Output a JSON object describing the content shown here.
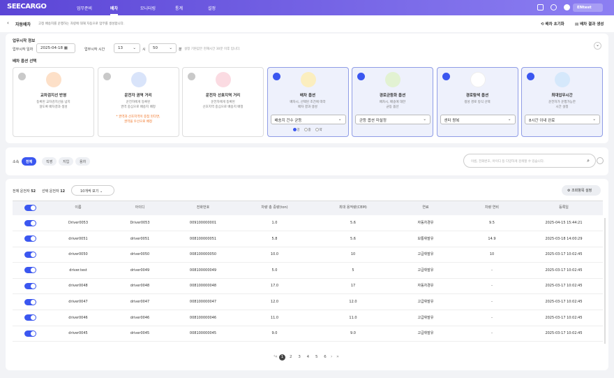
{
  "nav": {
    "logo": "SEECARGO",
    "menu": [
      "업무준비",
      "배차",
      "모니터링",
      "통계",
      "설정"
    ],
    "active": 1,
    "user": "ENtest"
  },
  "header": {
    "title": "자동배차",
    "desc": "고정 배송지를 운행하는 차량에 대해 자동으로 업무를 생성합니다.",
    "actions": [
      "배차 초기화",
      "배차 결과 생성"
    ]
  },
  "start_info": {
    "title": "업무시작 정보",
    "date_label": "업무시작 일자",
    "date": "2025-04-18",
    "time_label": "업무시작 시간",
    "hour": "13",
    "hour_unit": "시",
    "minute": "50",
    "minute_unit": "분",
    "note": "설정 기본값은 현재시간 30분 이후 입니다."
  },
  "options": {
    "title": "배차 옵션 선택",
    "cards": [
      {
        "title": "교차검지선 반영",
        "desc": [
          "등록된 교차검지선을 넘지",
          "않도록 배차결과 생성"
        ],
        "checked": false,
        "color": "#fde0c8"
      },
      {
        "title": "운전자 권역 거리",
        "desc": [
          "운전자에게 등록된",
          "권역 중심으로 배송지 배정"
        ],
        "note": [
          "* 권역과 선호지역이 중첩 된다면,",
          "권역을 우선으로 배정"
        ],
        "checked": false,
        "color": "#d9e4fa"
      },
      {
        "title": "운전자 선호지역 거리",
        "desc": [
          "운전자에게 등록된",
          "선호지역 중심으로 배송지 배정"
        ],
        "checked": false,
        "color": "#fbdbe2"
      },
      {
        "title": "배차 옵션",
        "desc": [
          "배차시, 선택된 조건에 따라",
          "배차 결과 생성"
        ],
        "checked": true,
        "color": "#fbeebf",
        "select": "배송지 건수 균등",
        "radios": [
          "강",
          "중",
          "약"
        ],
        "radio_selected": 0
      },
      {
        "title": "경로균등화 옵션",
        "desc": [
          "배차시, 배송에 대한",
          "균등 옵션"
        ],
        "checked": true,
        "color": "#e2f2d2",
        "select": "균등 옵션 미설정"
      },
      {
        "title": "경로탐색 옵션",
        "desc": [
          "생성 경로 방식 선택"
        ],
        "checked": true,
        "color": "#ffffff",
        "select": "센터 왕복"
      },
      {
        "title": "최대업무시간",
        "desc": [
          "운전자가 운행가능한",
          "시간 설정"
        ],
        "checked": true,
        "color": "#d5e8fb",
        "select": "8시간 이내 완료"
      }
    ]
  },
  "filter": {
    "label": "소속",
    "tabs": [
      "전체",
      "직영",
      "지입",
      "용차"
    ],
    "active": 0,
    "search_placeholder": "이름, 전화번호, 아이디 등 다양하게 검색할 수 있습니다."
  },
  "table": {
    "total_label": "전체 운전자",
    "total": 52,
    "selected_label": "선택 운전자",
    "selected": 12,
    "page_size": "10개씩 보기",
    "settings": "조회항목 설정",
    "all_enabled": true,
    "columns": [
      "이름",
      "아이디",
      "전화번호",
      "차량 총 중량(ton)",
      "최대 용적량(CBM)",
      "연료",
      "차량 연비",
      "등록일"
    ],
    "rows": [
      [
        "Driver0053",
        "Driver0053",
        "009100000001",
        "1.0",
        "5.6",
        "자동차경유",
        "9.5",
        "2025-04-15 15:44:21"
      ],
      [
        "driver0051",
        "driver0051",
        "008100000051",
        "5.8",
        "5.6",
        "보통휘발유",
        "14.9",
        "2025-03-18 14:00:29"
      ],
      [
        "driver0050",
        "driver0050",
        "008100000050",
        "10.0",
        "10",
        "고급휘발유",
        "10",
        "2025-03-17 10:02:45"
      ],
      [
        "driver.test",
        "driver0049",
        "008100000049",
        "5.0",
        "5",
        "고급휘발유",
        "-",
        "2025-03-17 10:02:45"
      ],
      [
        "driver0048",
        "driver0048",
        "008100000048",
        "17.0",
        "17",
        "자동차경유",
        "-",
        "2025-03-17 10:02:45"
      ],
      [
        "driver0047",
        "driver0047",
        "008100000047",
        "12.0",
        "12.0",
        "고급휘발유",
        "-",
        "2025-03-17 10:02:45"
      ],
      [
        "driver0046",
        "driver0046",
        "008100000046",
        "11.0",
        "11.0",
        "고급휘발유",
        "-",
        "2025-03-17 10:02:45"
      ],
      [
        "driver0045",
        "driver0045",
        "008100000045",
        "9.0",
        "9.0",
        "고급휘발유",
        "-",
        "2025-03-17 10:02:45"
      ]
    ],
    "row_enabled": [
      true,
      true,
      true,
      true,
      true,
      true,
      true,
      true
    ]
  },
  "pagination": {
    "pages": [
      1,
      2,
      3,
      4,
      5,
      6
    ],
    "current": 0
  }
}
